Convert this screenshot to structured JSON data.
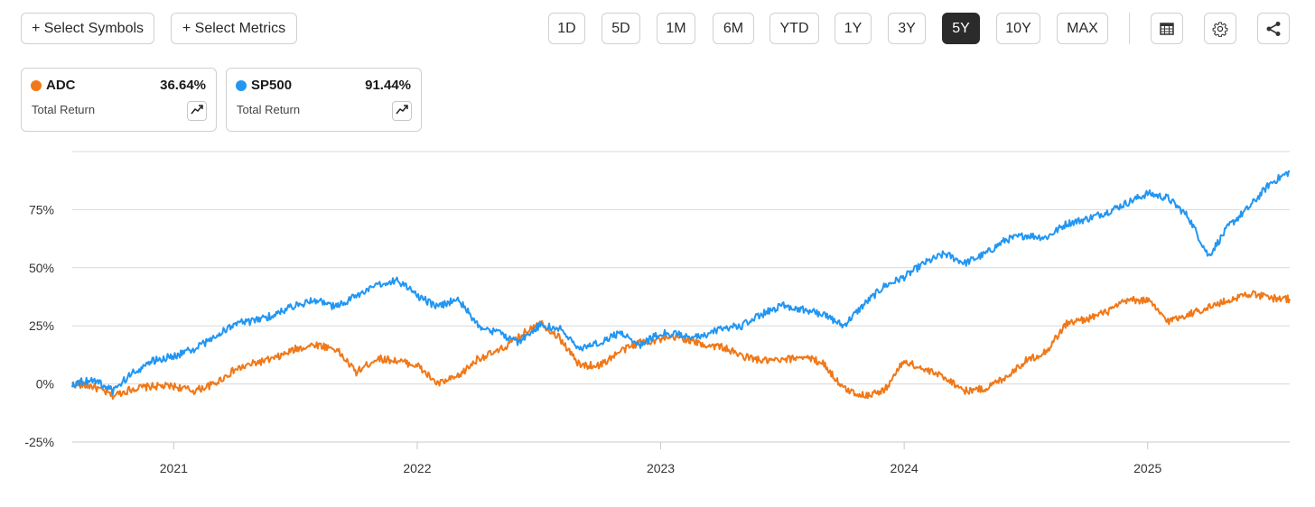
{
  "toolbar": {
    "select_symbols": "+ Select Symbols",
    "select_metrics": "+ Select Metrics",
    "ranges": [
      "1D",
      "5D",
      "1M",
      "6M",
      "YTD",
      "1Y",
      "3Y",
      "5Y",
      "10Y",
      "MAX"
    ],
    "active_range": "5Y",
    "icons": [
      "table-icon",
      "gear-icon",
      "share-icon"
    ]
  },
  "legend": [
    {
      "symbol": "ADC",
      "value": "36.64%",
      "metric": "Total Return",
      "color": "#f07818",
      "icon": "trend-chart-icon"
    },
    {
      "symbol": "SP500",
      "value": "91.44%",
      "metric": "Total Return",
      "color": "#2196f3",
      "icon": "trend-chart-icon"
    }
  ],
  "chart_data": {
    "type": "line",
    "x_ticks": [
      "2021",
      "2022",
      "2023",
      "2024",
      "2025"
    ],
    "y_ticks": [
      "-25%",
      "0%",
      "25%",
      "50%",
      "75%"
    ],
    "ylim": [
      -25,
      100
    ],
    "xlim": [
      "2020-08",
      "2025-08"
    ],
    "grid": true,
    "series": [
      {
        "name": "ADC",
        "color": "#f07818",
        "x": [
          "2020-08",
          "2020-09",
          "2020-10",
          "2020-11",
          "2020-12",
          "2021-01",
          "2021-02",
          "2021-03",
          "2021-04",
          "2021-05",
          "2021-06",
          "2021-07",
          "2021-08",
          "2021-09",
          "2021-10",
          "2021-11",
          "2021-12",
          "2022-01",
          "2022-02",
          "2022-03",
          "2022-04",
          "2022-05",
          "2022-06",
          "2022-07",
          "2022-08",
          "2022-09",
          "2022-10",
          "2022-11",
          "2022-12",
          "2023-01",
          "2023-02",
          "2023-03",
          "2023-04",
          "2023-05",
          "2023-06",
          "2023-07",
          "2023-08",
          "2023-09",
          "2023-10",
          "2023-11",
          "2023-12",
          "2024-01",
          "2024-02",
          "2024-03",
          "2024-04",
          "2024-05",
          "2024-06",
          "2024-07",
          "2024-08",
          "2024-09",
          "2024-10",
          "2024-11",
          "2024-12",
          "2025-01",
          "2025-02",
          "2025-03",
          "2025-04",
          "2025-05",
          "2025-06",
          "2025-07",
          "2025-08"
        ],
        "y": [
          0,
          -1,
          -5,
          -2,
          -1,
          -1,
          -3,
          0,
          6,
          9,
          11,
          15,
          17,
          15,
          5,
          11,
          10,
          8,
          0,
          3,
          11,
          14,
          20,
          27,
          20,
          8,
          8,
          14,
          18,
          19,
          20,
          17,
          16,
          12,
          10,
          10,
          12,
          9,
          -2,
          -5,
          -3,
          10,
          6,
          3,
          -3,
          -2,
          3,
          10,
          14,
          26,
          28,
          31,
          36,
          36,
          27,
          30,
          33,
          36,
          39,
          37,
          36.6
        ]
      },
      {
        "name": "SP500",
        "color": "#2196f3",
        "x": [
          "2020-08",
          "2020-09",
          "2020-10",
          "2020-11",
          "2020-12",
          "2021-01",
          "2021-02",
          "2021-03",
          "2021-04",
          "2021-05",
          "2021-06",
          "2021-07",
          "2021-08",
          "2021-09",
          "2021-10",
          "2021-11",
          "2021-12",
          "2022-01",
          "2022-02",
          "2022-03",
          "2022-04",
          "2022-05",
          "2022-06",
          "2022-07",
          "2022-08",
          "2022-09",
          "2022-10",
          "2022-11",
          "2022-12",
          "2023-01",
          "2023-02",
          "2023-03",
          "2023-04",
          "2023-05",
          "2023-06",
          "2023-07",
          "2023-08",
          "2023-09",
          "2023-10",
          "2023-11",
          "2023-12",
          "2024-01",
          "2024-02",
          "2024-03",
          "2024-04",
          "2024-05",
          "2024-06",
          "2024-07",
          "2024-08",
          "2024-09",
          "2024-10",
          "2024-11",
          "2024-12",
          "2025-01",
          "2025-02",
          "2025-03",
          "2025-04",
          "2025-05",
          "2025-06",
          "2025-07",
          "2025-08"
        ],
        "y": [
          0,
          2,
          -3,
          5,
          10,
          12,
          15,
          20,
          26,
          27,
          30,
          34,
          36,
          33,
          38,
          42,
          45,
          38,
          33,
          37,
          25,
          22,
          18,
          25,
          24,
          15,
          18,
          22,
          17,
          22,
          21,
          20,
          24,
          25,
          30,
          34,
          32,
          30,
          25,
          34,
          42,
          46,
          52,
          56,
          52,
          56,
          62,
          64,
          63,
          69,
          71,
          74,
          78,
          82,
          80,
          72,
          55,
          68,
          76,
          86,
          91.4
        ]
      }
    ]
  }
}
